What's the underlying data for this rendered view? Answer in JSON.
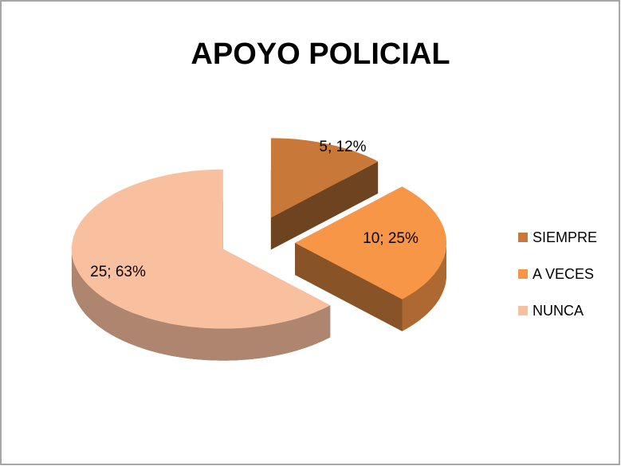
{
  "chart_data": {
    "type": "pie",
    "title": "APOYO POLICIAL",
    "categories": [
      "SIEMPRE",
      "A VECES",
      "NUNCA"
    ],
    "values": [
      5,
      10,
      25
    ],
    "value_labels": [
      "5; 12%",
      "10; 25%",
      "25; 63%"
    ],
    "colors": [
      "#c8793a",
      "#f79646",
      "#f9c0a0"
    ],
    "legend": "right"
  }
}
